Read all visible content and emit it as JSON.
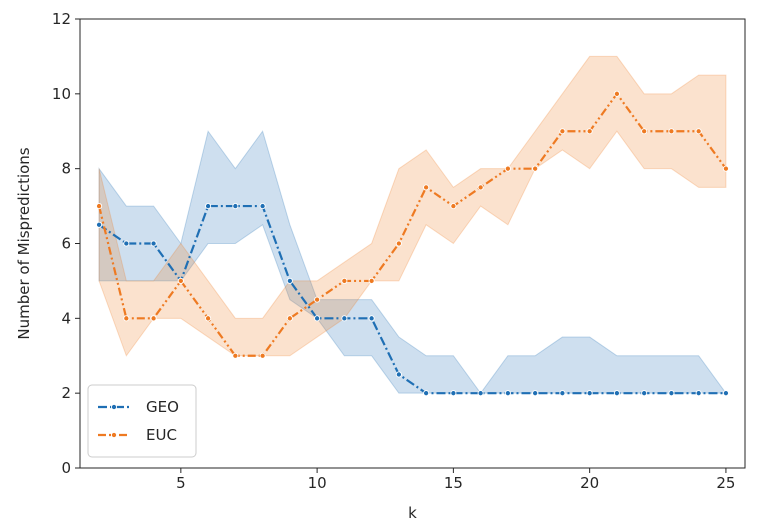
{
  "chart_data": {
    "type": "line",
    "xlabel": "k",
    "ylabel": "Number of Mispredictions",
    "xlim": [
      1.3,
      25.7
    ],
    "ylim": [
      0,
      12
    ],
    "xticks": [
      5,
      10,
      15,
      20,
      25
    ],
    "yticks": [
      0,
      2,
      4,
      6,
      8,
      10,
      12
    ],
    "grid": false,
    "legend_position": "lower-left",
    "x": [
      2,
      3,
      4,
      5,
      6,
      7,
      8,
      9,
      10,
      11,
      12,
      13,
      14,
      15,
      16,
      17,
      18,
      19,
      20,
      21,
      22,
      23,
      24,
      25
    ],
    "series": [
      {
        "name": "GEO",
        "color": "#1f6fb4",
        "linestyle": "dashdot",
        "marker": "dot",
        "values": [
          6.5,
          6,
          6,
          5,
          7,
          7,
          7,
          5,
          4,
          4,
          4,
          2.5,
          2,
          2,
          2,
          2,
          2,
          2,
          2,
          2,
          2,
          2,
          2,
          2
        ],
        "ci_lower": [
          5,
          5,
          5,
          5,
          6,
          6,
          6.5,
          4.5,
          4,
          3,
          3,
          2,
          2,
          2,
          2,
          2,
          2,
          2,
          2,
          2,
          2,
          2,
          2,
          2
        ],
        "ci_upper": [
          8,
          7,
          7,
          6,
          9,
          8,
          9,
          6.5,
          4.5,
          4.5,
          4.5,
          3.5,
          3,
          3,
          2,
          3,
          3,
          3.5,
          3.5,
          3,
          3,
          3,
          3,
          2
        ]
      },
      {
        "name": "EUC",
        "color": "#ee7a22",
        "linestyle": "dashdotdot",
        "marker": "dot",
        "values": [
          7,
          4,
          4,
          5,
          4,
          3,
          3,
          4,
          4.5,
          5,
          5,
          6,
          7.5,
          7,
          7.5,
          8,
          8,
          9,
          9,
          10,
          9,
          9,
          9,
          8
        ],
        "ci_lower": [
          5,
          3,
          4,
          4,
          3.5,
          3,
          3,
          3,
          3.5,
          4,
          5,
          5,
          6.5,
          6,
          7,
          6.5,
          8,
          8.5,
          8,
          9,
          8,
          8,
          7.5,
          7.5
        ],
        "ci_upper": [
          8,
          5,
          5,
          6,
          5,
          4,
          4,
          5,
          5,
          5.5,
          6,
          8,
          8.5,
          7.5,
          8,
          8,
          9,
          10,
          11,
          11,
          10,
          10,
          10.5,
          10.5
        ]
      }
    ]
  }
}
